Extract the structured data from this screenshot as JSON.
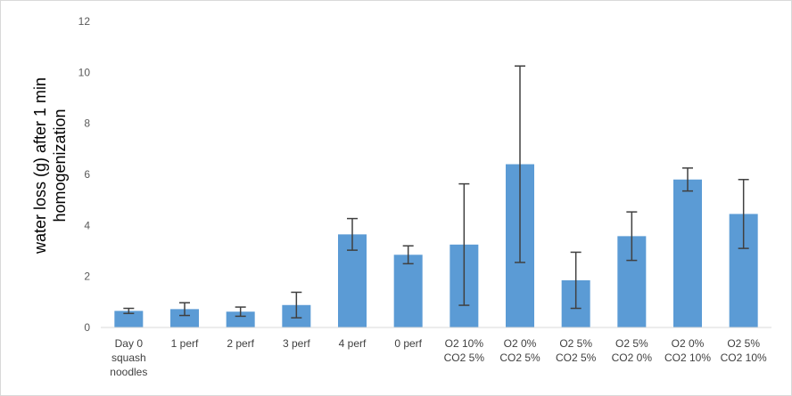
{
  "chart_data": {
    "type": "bar",
    "title": "",
    "xlabel": "",
    "ylabel_lines": [
      "water loss (g) after 1 min",
      "homogenization"
    ],
    "ylim": [
      0,
      12
    ],
    "yticks": [
      0,
      2,
      4,
      6,
      8,
      10,
      12
    ],
    "grid": false,
    "legend": "none",
    "bar_color": "#5b9bd5",
    "errorbar_color": "#404040",
    "categories": [
      [
        "Day 0",
        "squash",
        "noodles"
      ],
      [
        "1 perf"
      ],
      [
        "2 perf"
      ],
      [
        "3 perf"
      ],
      [
        "4 perf"
      ],
      [
        "0 perf"
      ],
      [
        "O2 10%",
        "CO2 5%"
      ],
      [
        "O2 0%",
        "CO2 5%"
      ],
      [
        "O2 5%",
        "CO2 5%"
      ],
      [
        "O2 5%",
        "CO2 0%"
      ],
      [
        "O2 0%",
        "CO2 10%"
      ],
      [
        "O2 5%",
        "CO2 10%"
      ]
    ],
    "values": [
      0.65,
      0.72,
      0.62,
      0.88,
      3.65,
      2.85,
      3.25,
      6.4,
      1.85,
      3.58,
      5.8,
      4.45
    ],
    "errors": [
      0.1,
      0.25,
      0.18,
      0.5,
      0.62,
      0.35,
      2.38,
      3.85,
      1.1,
      0.95,
      0.45,
      1.35
    ]
  }
}
